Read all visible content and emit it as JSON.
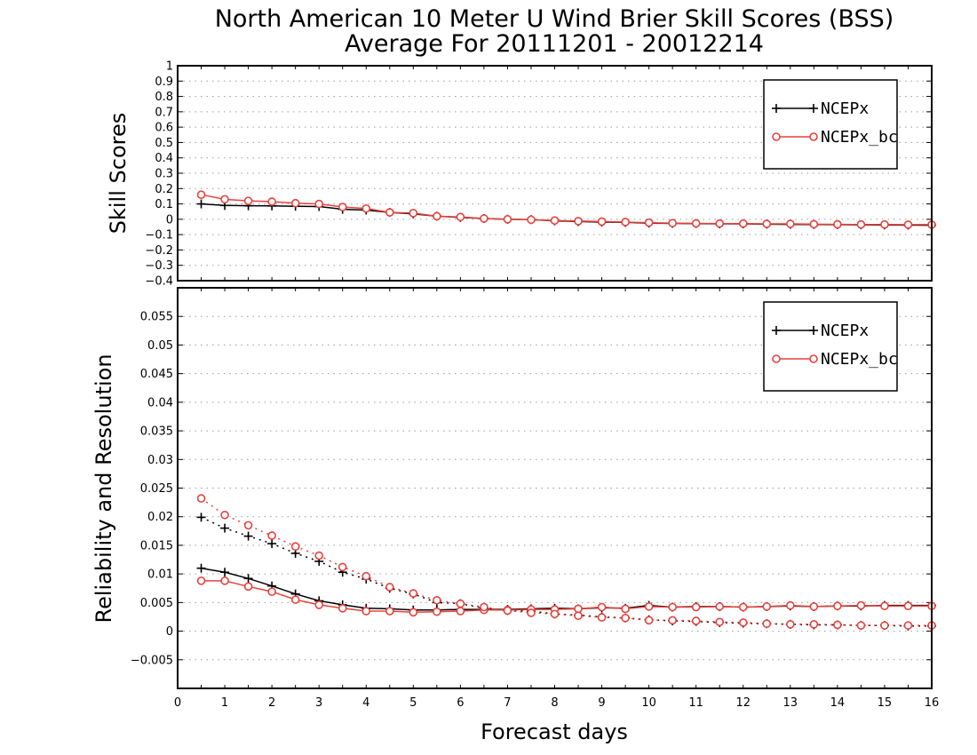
{
  "titles": {
    "line1": "North American 10 Meter U Wind Brier Skill Scores (BSS)",
    "line2": "Average For 20111201 - 20012214"
  },
  "colors": {
    "ncepx": "#000000",
    "ncepx_bc": "#e8413c",
    "grid": "#9a9a9a"
  },
  "chart_data": [
    {
      "type": "line",
      "panel": "top",
      "ylabel": "Skill Scores",
      "xlabel": "",
      "xlim": [
        0,
        16
      ],
      "ylim": [
        -0.4,
        1.0
      ],
      "yticks": [
        1,
        0.9,
        0.8,
        0.7,
        0.6,
        0.5,
        0.4,
        0.3,
        0.2,
        0.1,
        0,
        -0.1,
        -0.2,
        -0.3,
        -0.4
      ],
      "ytick_labels": [
        "1",
        "0.9",
        "0.8",
        "0.7",
        "0.6",
        "0.5",
        "0.4",
        "0.3",
        "0.2",
        "0.1",
        "0",
        "−0.1",
        "−0.2",
        "−0.3",
        "−0.4"
      ],
      "grid": true,
      "legend": {
        "position": "top-right",
        "entries": [
          "NCEPx",
          "NCEPx_bc"
        ]
      },
      "x": [
        0.5,
        1,
        1.5,
        2,
        2.5,
        3,
        3.5,
        4,
        4.5,
        5,
        5.5,
        6,
        6.5,
        7,
        7.5,
        8,
        8.5,
        9,
        9.5,
        10,
        10.5,
        11,
        11.5,
        12,
        12.5,
        13,
        13.5,
        14,
        14.5,
        15,
        15.5,
        16
      ],
      "series": [
        {
          "name": "NCEPx",
          "color": "#000000",
          "marker": "plus",
          "style": "solid",
          "values": [
            0.1,
            0.09,
            0.088,
            0.087,
            0.085,
            0.083,
            0.065,
            0.06,
            0.045,
            0.035,
            0.02,
            0.012,
            0.005,
            0.0,
            -0.002,
            -0.01,
            -0.015,
            -0.018,
            -0.02,
            -0.025,
            -0.027,
            -0.028,
            -0.03,
            -0.03,
            -0.032,
            -0.033,
            -0.034,
            -0.035,
            -0.036,
            -0.037,
            -0.038,
            -0.039
          ]
        },
        {
          "name": "NCEPx_bc",
          "color": "#e8413c",
          "marker": "circle",
          "style": "solid",
          "values": [
            0.16,
            0.13,
            0.12,
            0.115,
            0.105,
            0.1,
            0.08,
            0.07,
            0.045,
            0.04,
            0.02,
            0.015,
            0.005,
            0.0,
            -0.003,
            -0.008,
            -0.012,
            -0.015,
            -0.018,
            -0.022,
            -0.025,
            -0.027,
            -0.028,
            -0.028,
            -0.03,
            -0.03,
            -0.032,
            -0.033,
            -0.034,
            -0.034,
            -0.035,
            -0.035
          ]
        }
      ]
    },
    {
      "type": "line",
      "panel": "bottom",
      "ylabel": "Reliability and Resolution",
      "xlabel": "Forecast days",
      "xlim": [
        0,
        16
      ],
      "ylim": [
        -0.01,
        0.06
      ],
      "xticks": [
        "0",
        "1",
        "2",
        "3",
        "4",
        "5",
        "6",
        "7",
        "8",
        "9",
        "10",
        "11",
        "12",
        "13",
        "14",
        "15",
        "16"
      ],
      "yticks": [
        0.055,
        0.05,
        0.045,
        0.04,
        0.035,
        0.03,
        0.025,
        0.02,
        0.015,
        0.01,
        0.005,
        0,
        -0.005
      ],
      "ytick_labels": [
        "0.055",
        "0.05",
        "0.045",
        "0.04",
        "0.035",
        "0.03",
        "0.025",
        "0.02",
        "0.015",
        "0.01",
        "0.005",
        "0",
        "−0.005"
      ],
      "grid": true,
      "legend": {
        "position": "top-right",
        "entries": [
          "NCEPx",
          "NCEPx_bc"
        ]
      },
      "x": [
        0.5,
        1,
        1.5,
        2,
        2.5,
        3,
        3.5,
        4,
        4.5,
        5,
        5.5,
        6,
        6.5,
        7,
        7.5,
        8,
        8.5,
        9,
        9.5,
        10,
        10.5,
        11,
        11.5,
        12,
        12.5,
        13,
        13.5,
        14,
        14.5,
        15,
        15.5,
        16
      ],
      "series": [
        {
          "name": "NCEPx",
          "label_kind": "reliability",
          "color": "#000000",
          "marker": "plus",
          "style": "solid",
          "values": [
            0.011,
            0.0103,
            0.0092,
            0.0079,
            0.0065,
            0.0053,
            0.0046,
            0.004,
            0.0039,
            0.0037,
            0.0037,
            0.0038,
            0.0038,
            0.0038,
            0.0039,
            0.004,
            0.0039,
            0.0041,
            0.004,
            0.0045,
            0.0042,
            0.0043,
            0.0043,
            0.0042,
            0.0043,
            0.0044,
            0.0043,
            0.0044,
            0.0044,
            0.0045,
            0.0045,
            0.0045
          ]
        },
        {
          "name": "NCEPx",
          "label_kind": "resolution",
          "color": "#000000",
          "marker": "plus",
          "style": "dotted",
          "values": [
            0.0199,
            0.018,
            0.0166,
            0.0153,
            0.0136,
            0.0122,
            0.0103,
            0.0091,
            0.0075,
            0.0065,
            0.005,
            0.0048,
            0.004,
            0.0036,
            0.0035,
            0.003,
            0.0028,
            0.0025,
            0.0023,
            0.002,
            0.0018,
            0.0017,
            0.0015,
            0.0014,
            0.0013,
            0.0012,
            0.0011,
            0.0011,
            0.001,
            0.001,
            0.0009,
            0.0009
          ]
        },
        {
          "name": "NCEPx_bc",
          "label_kind": "reliability",
          "color": "#e8413c",
          "marker": "circle",
          "style": "solid",
          "values": [
            0.0088,
            0.0088,
            0.0078,
            0.0069,
            0.0055,
            0.0046,
            0.004,
            0.0035,
            0.0035,
            0.0033,
            0.0034,
            0.0035,
            0.0037,
            0.0037,
            0.0038,
            0.0038,
            0.0039,
            0.0042,
            0.0039,
            0.0043,
            0.0042,
            0.0042,
            0.0043,
            0.0042,
            0.0043,
            0.0045,
            0.0043,
            0.0044,
            0.0045,
            0.0044,
            0.0044,
            0.0044
          ]
        },
        {
          "name": "NCEPx_bc",
          "label_kind": "resolution",
          "color": "#e8413c",
          "marker": "circle",
          "style": "dotted",
          "values": [
            0.0232,
            0.0203,
            0.0185,
            0.0167,
            0.0148,
            0.0132,
            0.0112,
            0.0096,
            0.0077,
            0.0066,
            0.0054,
            0.0048,
            0.0042,
            0.0036,
            0.0032,
            0.003,
            0.0027,
            0.0024,
            0.0023,
            0.0019,
            0.0019,
            0.0018,
            0.0016,
            0.0015,
            0.0013,
            0.0012,
            0.0012,
            0.0011,
            0.001,
            0.001,
            0.001,
            0.001
          ]
        }
      ]
    }
  ]
}
